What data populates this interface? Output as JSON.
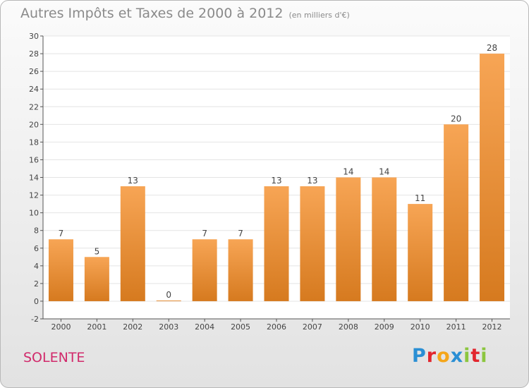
{
  "header": {
    "title": "Autres Impôts et Taxes de 2000 à 2012",
    "unit": "(en milliers d'€)"
  },
  "footer": {
    "commune": "SOLENTE",
    "brand_letters": [
      {
        "ch": "P",
        "color": "#2a8fd4"
      },
      {
        "ch": "r",
        "color": "#e2262e"
      },
      {
        "ch": "o",
        "color": "#f5a61a"
      },
      {
        "ch": "x",
        "color": "#2a8fd4"
      },
      {
        "ch": "i",
        "color": "#8cc63f"
      },
      {
        "ch": "t",
        "color": "#e2262e"
      },
      {
        "ch": "i",
        "color": "#8cc63f"
      }
    ]
  },
  "chart_data": {
    "type": "bar",
    "title": "Autres Impôts et Taxes de 2000 à 2012",
    "subtitle": "(en milliers d'€)",
    "categories": [
      "2000",
      "2001",
      "2002",
      "2003",
      "2004",
      "2005",
      "2006",
      "2007",
      "2008",
      "2009",
      "2010",
      "2011",
      "2012"
    ],
    "values": [
      7,
      5,
      13,
      0,
      7,
      7,
      13,
      13,
      14,
      14,
      11,
      20,
      28
    ],
    "ylim": [
      -2,
      30
    ],
    "yticks": [
      -2,
      0,
      2,
      4,
      6,
      8,
      10,
      12,
      14,
      16,
      18,
      20,
      22,
      24,
      26,
      28,
      30
    ],
    "grid": true,
    "colors": {
      "bar_top": "#f7a555",
      "bar_bottom": "#d67a1f",
      "grid": "#e4e4e4",
      "axis": "#555555"
    }
  }
}
